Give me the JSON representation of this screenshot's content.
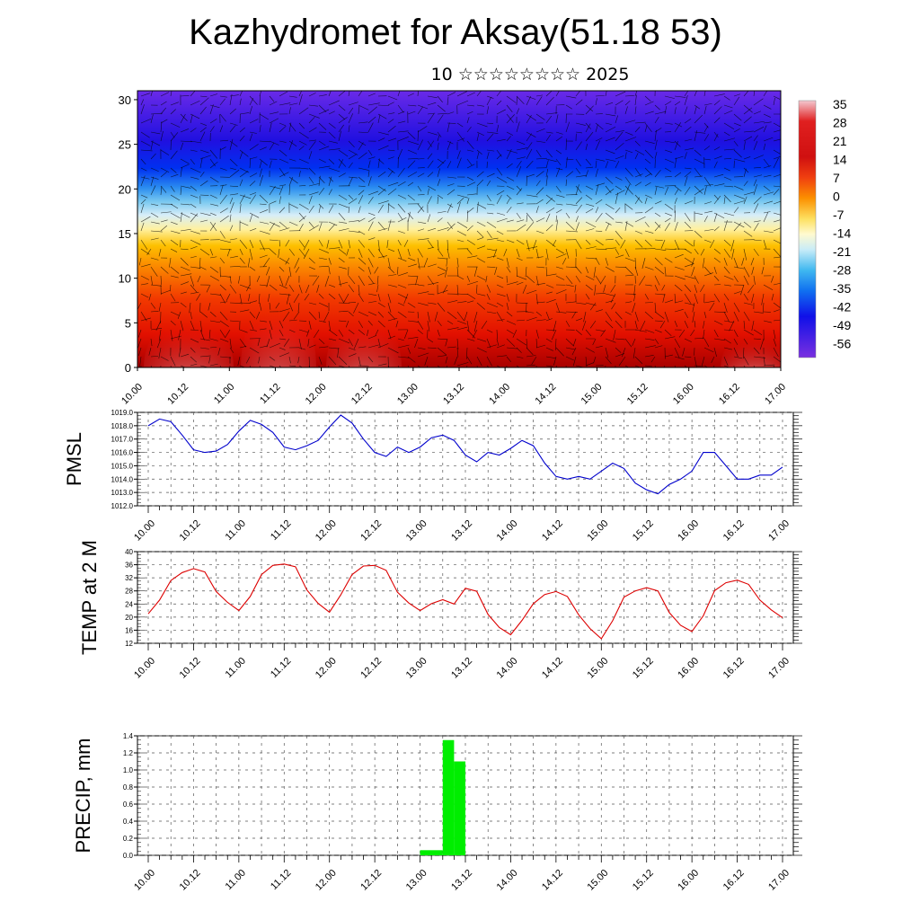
{
  "title": "Kazhydromet for Aksay(51.18 53)",
  "subtitle": "10 ☆☆☆☆☆☆☆☆ 2025",
  "colors": {
    "pmsl_line": "#0000cc",
    "temp_line": "#dd0000",
    "precip_bar": "#00ee00",
    "grid": "#555555"
  },
  "chart_data": [
    {
      "type": "heatmap",
      "title": "",
      "ylabel": "",
      "yticks": [
        0,
        5,
        10,
        15,
        20,
        25,
        30
      ],
      "ylim": [
        0,
        31
      ],
      "xticks": [
        "10.00",
        "10.12",
        "11.00",
        "11.12",
        "12.00",
        "12.12",
        "13.00",
        "13.12",
        "14.00",
        "14.12",
        "15.00",
        "15.12",
        "16.00",
        "16.12",
        "17.00"
      ],
      "colorbar_labels": [
        35,
        28,
        21,
        14,
        7,
        0,
        -7,
        -14,
        -21,
        -28,
        -35,
        -42,
        -49,
        -56
      ],
      "overlay": "wind barbs"
    },
    {
      "type": "line",
      "ylabel": "PMSL",
      "ylim": [
        1012,
        1019
      ],
      "yticks": [
        "1012.0",
        "1013.0",
        "1014.0",
        "1015.0",
        "1016.0",
        "1017.0",
        "1018.0",
        "1019.0"
      ],
      "xticks": [
        "10.00",
        "10.12",
        "11.00",
        "11.12",
        "12.00",
        "12.12",
        "13.00",
        "13.12",
        "14.00",
        "14.12",
        "15.00",
        "15.12",
        "16.00",
        "16.12",
        "17.00"
      ],
      "x_hours": [
        0,
        3,
        6,
        9,
        12,
        15,
        18,
        21,
        24,
        27,
        30,
        33,
        36,
        39,
        42,
        45,
        48,
        51,
        54,
        57,
        60,
        63,
        66,
        69,
        72,
        75,
        78,
        81,
        84,
        87,
        90,
        93,
        96,
        99,
        102,
        105,
        108,
        111,
        114,
        117,
        120,
        123,
        126,
        129,
        132,
        135,
        138,
        141,
        144,
        147,
        150,
        153,
        156,
        159,
        162,
        165,
        168
      ],
      "values": [
        1018.0,
        1018.5,
        1018.3,
        1017.3,
        1016.2,
        1016.0,
        1016.1,
        1016.6,
        1017.6,
        1018.4,
        1018.1,
        1017.5,
        1016.4,
        1016.2,
        1016.5,
        1016.9,
        1017.9,
        1018.8,
        1018.2,
        1017.0,
        1016.0,
        1015.7,
        1016.4,
        1016.0,
        1016.4,
        1017.1,
        1017.3,
        1016.9,
        1015.8,
        1015.3,
        1016.0,
        1015.8,
        1016.3,
        1016.9,
        1016.5,
        1015.2,
        1014.2,
        1014.0,
        1014.2,
        1014.0,
        1014.6,
        1015.2,
        1014.8,
        1013.7,
        1013.2,
        1012.9,
        1013.6,
        1014.0,
        1014.6,
        1016.0,
        1016.0,
        1015.0,
        1014.0,
        1014.0,
        1014.3,
        1014.3,
        1014.9
      ]
    },
    {
      "type": "line",
      "ylabel": "TEMP at 2 M",
      "ylim": [
        12,
        40
      ],
      "yticks": [
        12,
        16,
        20,
        24,
        28,
        32,
        36,
        40
      ],
      "xticks": [
        "10.00",
        "10.12",
        "11.00",
        "11.12",
        "12.00",
        "12.12",
        "13.00",
        "13.12",
        "14.00",
        "14.12",
        "15.00",
        "15.12",
        "16.00",
        "16.12",
        "17.00"
      ],
      "x_hours": [
        0,
        3,
        6,
        9,
        12,
        15,
        18,
        21,
        24,
        27,
        30,
        33,
        36,
        39,
        42,
        45,
        48,
        51,
        54,
        57,
        60,
        63,
        66,
        69,
        72,
        75,
        78,
        81,
        84,
        87,
        90,
        93,
        96,
        99,
        102,
        105,
        108,
        111,
        114,
        117,
        120,
        123,
        126,
        129,
        132,
        135,
        138,
        141,
        144,
        147,
        150,
        153,
        156,
        159,
        162,
        165,
        168
      ],
      "values": [
        21.0,
        25.2,
        31.2,
        33.6,
        34.8,
        33.8,
        27.8,
        24.5,
        22.0,
        26.3,
        33.0,
        35.8,
        36.2,
        35.4,
        28.3,
        24.2,
        21.5,
        26.8,
        33.0,
        35.6,
        35.8,
        34.3,
        27.6,
        24.3,
        22.0,
        24.1,
        25.3,
        24.0,
        28.8,
        27.9,
        20.8,
        16.8,
        14.6,
        19.0,
        24.1,
        26.9,
        27.8,
        26.3,
        20.7,
        16.5,
        13.4,
        18.9,
        26.1,
        28.0,
        29.0,
        28.0,
        21.4,
        17.5,
        15.6,
        20.4,
        28.1,
        30.5,
        31.3,
        30.0,
        25.2,
        22.2,
        19.8
      ]
    },
    {
      "type": "bar",
      "ylabel": "PRECIP, mm",
      "ylim": [
        0,
        1.4
      ],
      "yticks": [
        "0.0",
        "0.2",
        "0.4",
        "0.6",
        "0.8",
        "1.0",
        "1.2",
        "1.4"
      ],
      "xticks": [
        "10.00",
        "10.12",
        "11.00",
        "11.12",
        "12.00",
        "12.12",
        "13.00",
        "13.12",
        "14.00",
        "14.12",
        "15.00",
        "15.12",
        "16.00",
        "16.12",
        "17.00"
      ],
      "bars": [
        {
          "start_hour": 72,
          "end_hour": 78,
          "value": 0.06
        },
        {
          "start_hour": 78,
          "end_hour": 81,
          "value": 1.35
        },
        {
          "start_hour": 81,
          "end_hour": 84,
          "value": 1.1
        }
      ]
    }
  ]
}
